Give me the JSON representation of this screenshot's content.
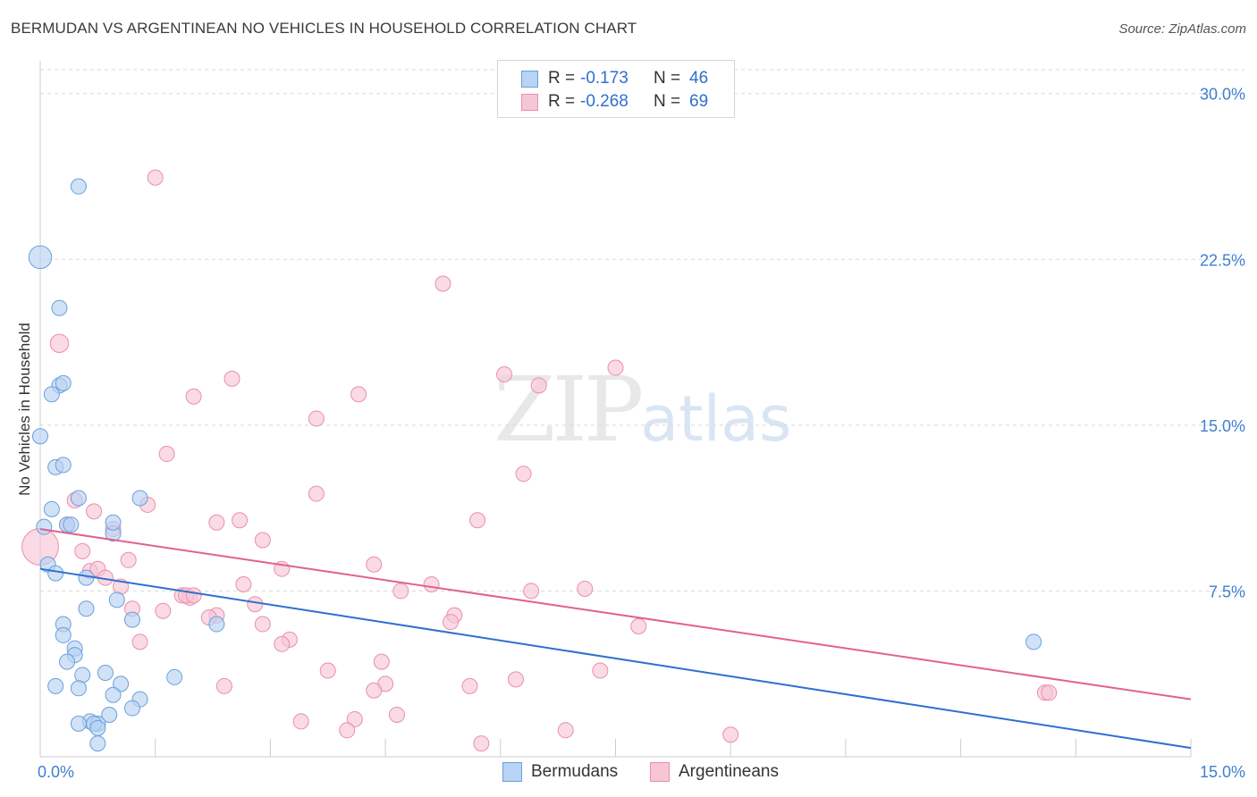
{
  "title": "BERMUDAN VS ARGENTINEAN NO VEHICLES IN HOUSEHOLD CORRELATION CHART",
  "source": "Source: ZipAtlas.com",
  "watermark": {
    "zip": "ZIP",
    "atlas": "atlas"
  },
  "legend": {
    "bermudans": {
      "r_label": "R =",
      "r_value": "-0.173",
      "n_label": "N =",
      "n_value": "46"
    },
    "argentineans": {
      "r_label": "R =",
      "r_value": "-0.268",
      "n_label": "N =",
      "n_value": "69"
    }
  },
  "colors": {
    "blue_fill": "#b8d3f3",
    "blue_stroke": "#6a9fdc",
    "blue_line": "#2e6fd0",
    "pink_fill": "#f7c6d5",
    "pink_stroke": "#e98fab",
    "pink_line": "#e0628e",
    "grid": "#d9d9d9",
    "tick_text": "#3f7fd0"
  },
  "chart_data": {
    "type": "scatter",
    "title": "BERMUDAN VS ARGENTINEAN NO VEHICLES IN HOUSEHOLD CORRELATION CHART",
    "xlabel": "",
    "ylabel": "No Vehicles in Household",
    "xlim": [
      0,
      15
    ],
    "ylim": [
      0,
      31
    ],
    "x_ticks": [
      0,
      1.5,
      3,
      4.5,
      6,
      7.5,
      9,
      10.5,
      12,
      13.5,
      15
    ],
    "x_tick_labels": {
      "0": "0.0%",
      "15": "15.0%"
    },
    "y_ticks": [
      7.5,
      15,
      22.5,
      30
    ],
    "y_tick_labels": [
      "7.5%",
      "15.0%",
      "22.5%",
      "30.0%"
    ],
    "grid": true,
    "series": [
      {
        "name": "Bermudans",
        "color": "blue",
        "r": -0.173,
        "n": 46,
        "trend": {
          "x": [
            0,
            15
          ],
          "y": [
            8.5,
            0.4
          ]
        },
        "points": [
          [
            0.0,
            22.6,
            1.5
          ],
          [
            0.5,
            25.8,
            1
          ],
          [
            0.25,
            20.3,
            1
          ],
          [
            0.25,
            16.8,
            1
          ],
          [
            0.15,
            16.4,
            1
          ],
          [
            0.3,
            16.9,
            1
          ],
          [
            0.0,
            14.5,
            1
          ],
          [
            0.2,
            13.1,
            1
          ],
          [
            0.3,
            13.2,
            1
          ],
          [
            0.15,
            11.2,
            1
          ],
          [
            0.5,
            11.7,
            1
          ],
          [
            1.3,
            11.7,
            1
          ],
          [
            0.05,
            10.4,
            1
          ],
          [
            0.35,
            10.5,
            1
          ],
          [
            0.4,
            10.5,
            1
          ],
          [
            0.95,
            10.1,
            1
          ],
          [
            0.95,
            10.6,
            1
          ],
          [
            0.1,
            8.7,
            1
          ],
          [
            0.2,
            8.3,
            1
          ],
          [
            0.6,
            8.1,
            1
          ],
          [
            1.0,
            7.1,
            1
          ],
          [
            0.6,
            6.7,
            1
          ],
          [
            1.2,
            6.2,
            1
          ],
          [
            2.3,
            6.0,
            1
          ],
          [
            0.3,
            6.0,
            1
          ],
          [
            0.3,
            5.5,
            1
          ],
          [
            0.45,
            4.9,
            1
          ],
          [
            0.45,
            4.6,
            1
          ],
          [
            0.35,
            4.3,
            1
          ],
          [
            0.55,
            3.7,
            1
          ],
          [
            0.85,
            3.8,
            1
          ],
          [
            1.75,
            3.6,
            1
          ],
          [
            1.05,
            3.3,
            1
          ],
          [
            0.2,
            3.2,
            1
          ],
          [
            0.5,
            3.1,
            1
          ],
          [
            0.95,
            2.8,
            1
          ],
          [
            1.3,
            2.6,
            1
          ],
          [
            1.2,
            2.2,
            1
          ],
          [
            0.9,
            1.9,
            1
          ],
          [
            0.65,
            1.6,
            1
          ],
          [
            0.75,
            1.5,
            1
          ],
          [
            0.5,
            1.5,
            1
          ],
          [
            0.7,
            1.5,
            1
          ],
          [
            0.75,
            1.3,
            1
          ],
          [
            0.75,
            0.6,
            1
          ],
          [
            12.95,
            5.2,
            1
          ]
        ]
      },
      {
        "name": "Argentineans",
        "color": "pink",
        "r": -0.268,
        "n": 69,
        "trend": {
          "x": [
            0,
            15
          ],
          "y": [
            10.3,
            2.6
          ]
        },
        "points": [
          [
            0.0,
            9.5,
            2.4
          ],
          [
            0.25,
            18.7,
            1.2
          ],
          [
            1.5,
            26.2,
            1
          ],
          [
            5.25,
            21.4,
            1
          ],
          [
            7.5,
            17.6,
            1
          ],
          [
            6.05,
            17.3,
            1
          ],
          [
            2.5,
            17.1,
            1
          ],
          [
            6.5,
            16.8,
            1
          ],
          [
            4.15,
            16.4,
            1
          ],
          [
            2.0,
            16.3,
            1
          ],
          [
            3.6,
            15.3,
            1
          ],
          [
            1.65,
            13.7,
            1
          ],
          [
            6.3,
            12.8,
            1
          ],
          [
            3.6,
            11.9,
            1
          ],
          [
            0.45,
            11.6,
            1
          ],
          [
            1.4,
            11.4,
            1
          ],
          [
            0.7,
            11.1,
            1
          ],
          [
            2.3,
            10.6,
            1
          ],
          [
            2.6,
            10.7,
            1
          ],
          [
            5.7,
            10.7,
            1
          ],
          [
            0.35,
            10.5,
            1
          ],
          [
            0.95,
            10.3,
            1
          ],
          [
            2.9,
            9.8,
            1
          ],
          [
            0.55,
            9.3,
            1
          ],
          [
            1.15,
            8.9,
            1
          ],
          [
            0.65,
            8.4,
            1
          ],
          [
            0.75,
            8.5,
            1
          ],
          [
            3.15,
            8.5,
            1
          ],
          [
            4.35,
            8.7,
            1
          ],
          [
            0.85,
            8.1,
            1
          ],
          [
            1.05,
            7.7,
            1
          ],
          [
            2.65,
            7.8,
            1
          ],
          [
            5.1,
            7.8,
            1
          ],
          [
            4.7,
            7.5,
            1
          ],
          [
            6.4,
            7.5,
            1
          ],
          [
            7.1,
            7.6,
            1
          ],
          [
            1.85,
            7.3,
            1
          ],
          [
            1.95,
            7.2,
            1
          ],
          [
            1.9,
            7.3,
            1
          ],
          [
            2.0,
            7.3,
            1
          ],
          [
            2.8,
            6.9,
            1
          ],
          [
            1.2,
            6.7,
            1
          ],
          [
            1.6,
            6.6,
            1
          ],
          [
            2.3,
            6.4,
            1
          ],
          [
            2.2,
            6.3,
            1
          ],
          [
            5.4,
            6.4,
            1
          ],
          [
            5.35,
            6.1,
            1
          ],
          [
            2.9,
            6.0,
            1
          ],
          [
            7.8,
            5.9,
            1
          ],
          [
            1.3,
            5.2,
            1
          ],
          [
            3.25,
            5.3,
            1
          ],
          [
            3.15,
            5.1,
            1
          ],
          [
            4.45,
            4.3,
            1
          ],
          [
            3.75,
            3.9,
            1
          ],
          [
            7.3,
            3.9,
            1
          ],
          [
            6.2,
            3.5,
            1
          ],
          [
            2.4,
            3.2,
            1
          ],
          [
            4.5,
            3.3,
            1
          ],
          [
            4.35,
            3.0,
            1
          ],
          [
            5.6,
            3.2,
            1
          ],
          [
            13.1,
            2.9,
            1
          ],
          [
            13.15,
            2.9,
            1
          ],
          [
            4.65,
            1.9,
            1
          ],
          [
            3.4,
            1.6,
            1
          ],
          [
            4.1,
            1.7,
            1
          ],
          [
            4.0,
            1.2,
            1
          ],
          [
            6.85,
            1.2,
            1
          ],
          [
            9.0,
            1.0,
            1
          ],
          [
            5.75,
            0.6,
            1
          ]
        ]
      }
    ]
  },
  "bottom_legend": {
    "bermudans": "Bermudans",
    "argentineans": "Argentineans"
  }
}
